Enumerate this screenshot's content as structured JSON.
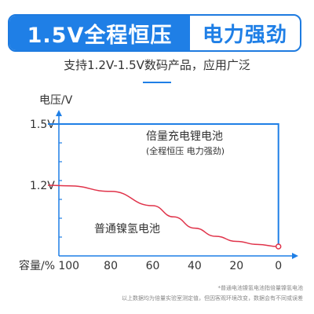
{
  "banner": {
    "left": "1.5V全程恒压",
    "right": "电力强劲"
  },
  "subtitle": "支持1.2V-1.5V数码产品，应用广泛",
  "notes": [
    "*普通电池镍氢电池指倍量镍氢电池",
    "以上数据均为倍量实验室测定值，但因客观环境改变，数据会有不同或误差"
  ],
  "colors": {
    "accent": "#1f7fe6",
    "curve": "#e0334a",
    "axis": "#1f7fe6"
  },
  "chart_data": {
    "type": "line",
    "ylabel": "电压/V",
    "xlabel": "容量/%",
    "x_ticks": [
      100,
      80,
      60,
      40,
      20,
      0
    ],
    "y_ticks": [
      "1.5V",
      "1.2V"
    ],
    "x_reversed": true,
    "series": [
      {
        "name": "倍量充电锂电池",
        "sublabel": "(全程恒压 电力强劲)",
        "color": "#1f7fe6",
        "x": [
          110,
          0,
          0
        ],
        "y": [
          1.5,
          1.5,
          0.9
        ]
      },
      {
        "name": "普通镍氢电池",
        "color": "#e0334a",
        "x": [
          110,
          100,
          80,
          60,
          50,
          40,
          30,
          20,
          10,
          0
        ],
        "y": [
          1.2,
          1.197,
          1.17,
          1.1,
          1.045,
          0.99,
          0.95,
          0.925,
          0.91,
          0.9
        ]
      }
    ]
  }
}
